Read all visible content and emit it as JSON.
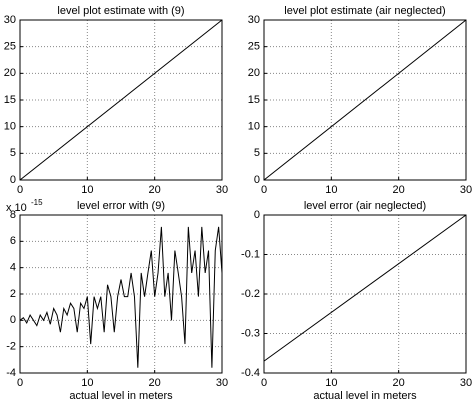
{
  "chart_data": [
    {
      "type": "line",
      "title": "level plot estimate with (9)",
      "x": [
        0,
        30
      ],
      "series": [
        {
          "color": "#000000",
          "values": [
            0,
            30
          ]
        }
      ],
      "xlim": [
        0,
        30
      ],
      "xticks": [
        0,
        10,
        20,
        30
      ],
      "ylim": [
        0,
        30
      ],
      "yticks": [
        0,
        5,
        10,
        15,
        20,
        25,
        30
      ],
      "grid": true
    },
    {
      "type": "line",
      "title": "level plot estimate (air neglected)",
      "x": [
        0,
        30
      ],
      "series": [
        {
          "color": "#000000",
          "values": [
            0,
            30
          ]
        }
      ],
      "xlim": [
        0,
        30
      ],
      "xticks": [
        0,
        10,
        20,
        30
      ],
      "ylim": [
        0,
        30
      ],
      "yticks": [
        0,
        5,
        10,
        15,
        20,
        25,
        30
      ],
      "grid": true
    },
    {
      "type": "line",
      "title": "level error with (9)",
      "xlabel": "actual level in meters",
      "y_scale_label": "x 10",
      "y_scale_exponent": "-15",
      "x": [
        0,
        0.5,
        1,
        1.5,
        2,
        2.5,
        3,
        3.5,
        4,
        4.5,
        5,
        5.5,
        6,
        6.5,
        7,
        7.5,
        8,
        8.5,
        9,
        9.5,
        10,
        10.5,
        11,
        11.5,
        12,
        12.5,
        13,
        13.5,
        14,
        14.5,
        15,
        15.5,
        16,
        16.5,
        17,
        17.5,
        18,
        18.5,
        19,
        19.5,
        20,
        20.5,
        21,
        21.5,
        22,
        22.5,
        23,
        23.5,
        24,
        24.5,
        25,
        25.5,
        26,
        26.5,
        27,
        27.5,
        28,
        28.5,
        29,
        29.5,
        30
      ],
      "series": [
        {
          "color": "#000000",
          "values": [
            0,
            0.2,
            -0.2,
            0.4,
            0,
            -0.4,
            0.4,
            0,
            0.6,
            -0.3,
            0.9,
            0.4,
            -0.9,
            0.9,
            0.4,
            1.3,
            0.9,
            -0.9,
            1.3,
            0.9,
            1.8,
            -1.8,
            1.8,
            0.9,
            1.8,
            -0.9,
            2.7,
            1.8,
            -0.9,
            1.8,
            3.1,
            1.8,
            1.8,
            3.6,
            1.8,
            -3.6,
            3.6,
            1.8,
            3.6,
            5.3,
            1.8,
            3.6,
            7.1,
            1.8,
            3.6,
            0,
            5.3,
            3.6,
            1.8,
            -1.8,
            7.1,
            3.6,
            5.3,
            1.8,
            7.1,
            3.6,
            5.3,
            -3.6,
            5.3,
            7.1,
            3.6
          ]
        }
      ],
      "xlim": [
        0,
        30
      ],
      "xticks": [
        0,
        10,
        20,
        30
      ],
      "ylim": [
        -4,
        8
      ],
      "yticks": [
        -4,
        -2,
        0,
        2,
        4,
        6,
        8
      ],
      "grid": true
    },
    {
      "type": "line",
      "title": "level error (air neglected)",
      "xlabel": "actual level in meters",
      "x": [
        0,
        30
      ],
      "series": [
        {
          "color": "#000000",
          "values": [
            -0.37,
            0
          ]
        }
      ],
      "xlim": [
        0,
        30
      ],
      "xticks": [
        0,
        10,
        20,
        30
      ],
      "ylim": [
        -0.4,
        0
      ],
      "yticks": [
        -0.4,
        -0.3,
        -0.2,
        -0.1,
        0
      ],
      "grid": true
    }
  ]
}
